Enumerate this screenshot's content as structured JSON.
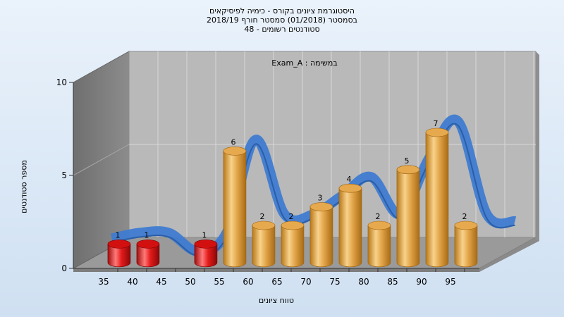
{
  "titles": {
    "line1": "היסטוגרמת ציונים בקורס - כימיה לפיסיקאים",
    "line2": "בסמסטר  (01/2018)  סמסטר חורף 2018/19",
    "line3": "סטודנטים רשומים - 48"
  },
  "chart_data": {
    "type": "bar",
    "annotation": "Exam_A : במשימה",
    "xlabel": "טווח ציונים",
    "ylabel": "מספר סטודנטים",
    "ylim": [
      0,
      10
    ],
    "yticks": [
      0,
      5,
      10
    ],
    "categories": [
      "35",
      "40",
      "45",
      "50",
      "55",
      "60",
      "65",
      "70",
      "75",
      "80",
      "85",
      "90",
      "95"
    ],
    "values": [
      1,
      1,
      0,
      1,
      6,
      2,
      2,
      3,
      4,
      2,
      5,
      7,
      2
    ],
    "bar_colors": [
      "#e01515",
      "#e01515",
      "#e01515",
      "#e01515",
      "#e3a13c",
      "#e3a13c",
      "#e3a13c",
      "#e3a13c",
      "#e3a13c",
      "#e3a13c",
      "#e3a13c",
      "#e3a13c",
      "#e3a13c"
    ],
    "trend_ribbon_color": "#3f7bd0",
    "grid": true
  }
}
